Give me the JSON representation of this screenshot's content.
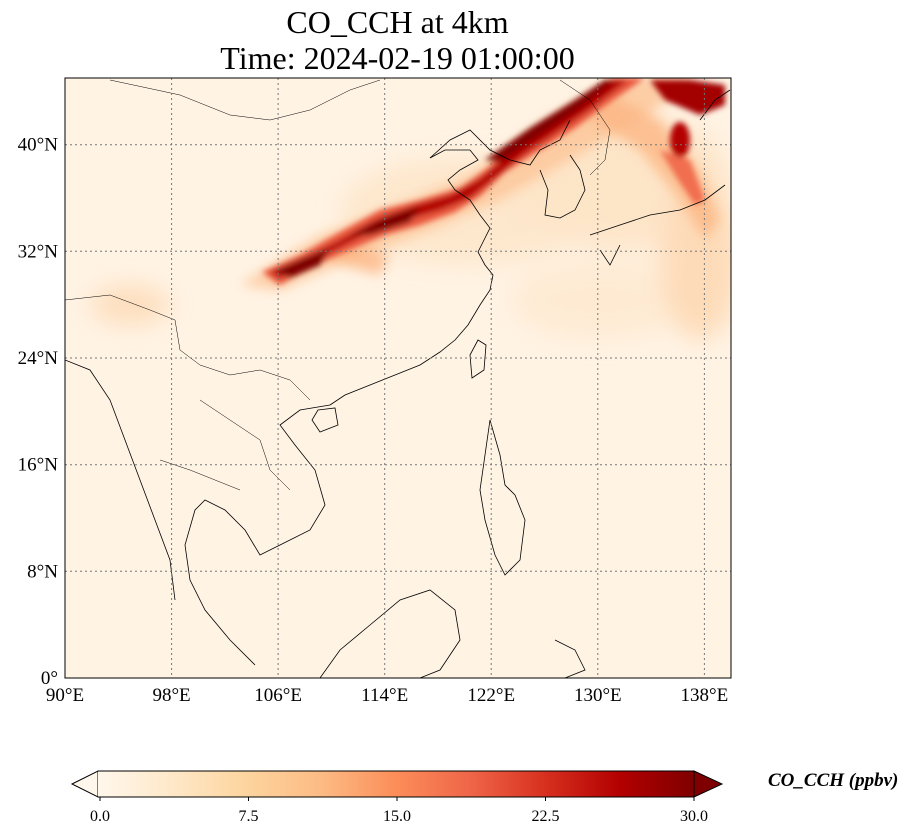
{
  "title_line1": "CO_CCH at 4km",
  "title_line2": "Time: 2024-02-19 01:00:00",
  "map": {
    "lon_range": [
      90,
      140
    ],
    "lat_range": [
      0,
      45
    ],
    "lon_ticks": [
      "90°E",
      "98°E",
      "106°E",
      "114°E",
      "122°E",
      "130°E",
      "138°E"
    ],
    "lat_ticks": [
      "0°",
      "8°N",
      "16°N",
      "24°N",
      "32°N",
      "40°N"
    ],
    "lon_tick_values": [
      90,
      98,
      106,
      114,
      122,
      130,
      138
    ],
    "lat_tick_values": [
      0,
      8,
      16,
      24,
      32,
      40
    ],
    "gridlines": "dotted",
    "coastlines": true,
    "colormap": "OrRd",
    "colormap_stops": [
      "#fff7ec",
      "#fee8c8",
      "#fdd49e",
      "#fdbb84",
      "#fc8d59",
      "#ef6548",
      "#d7301f",
      "#b30000",
      "#7f0000"
    ]
  },
  "colorbar": {
    "label": "CO_CCH (ppbv)",
    "ticks": [
      "0.0",
      "7.5",
      "15.0",
      "22.5",
      "30.0"
    ],
    "tick_values": [
      0,
      7.5,
      15,
      22.5,
      30
    ],
    "range": [
      0,
      30
    ],
    "extend": "both"
  }
}
